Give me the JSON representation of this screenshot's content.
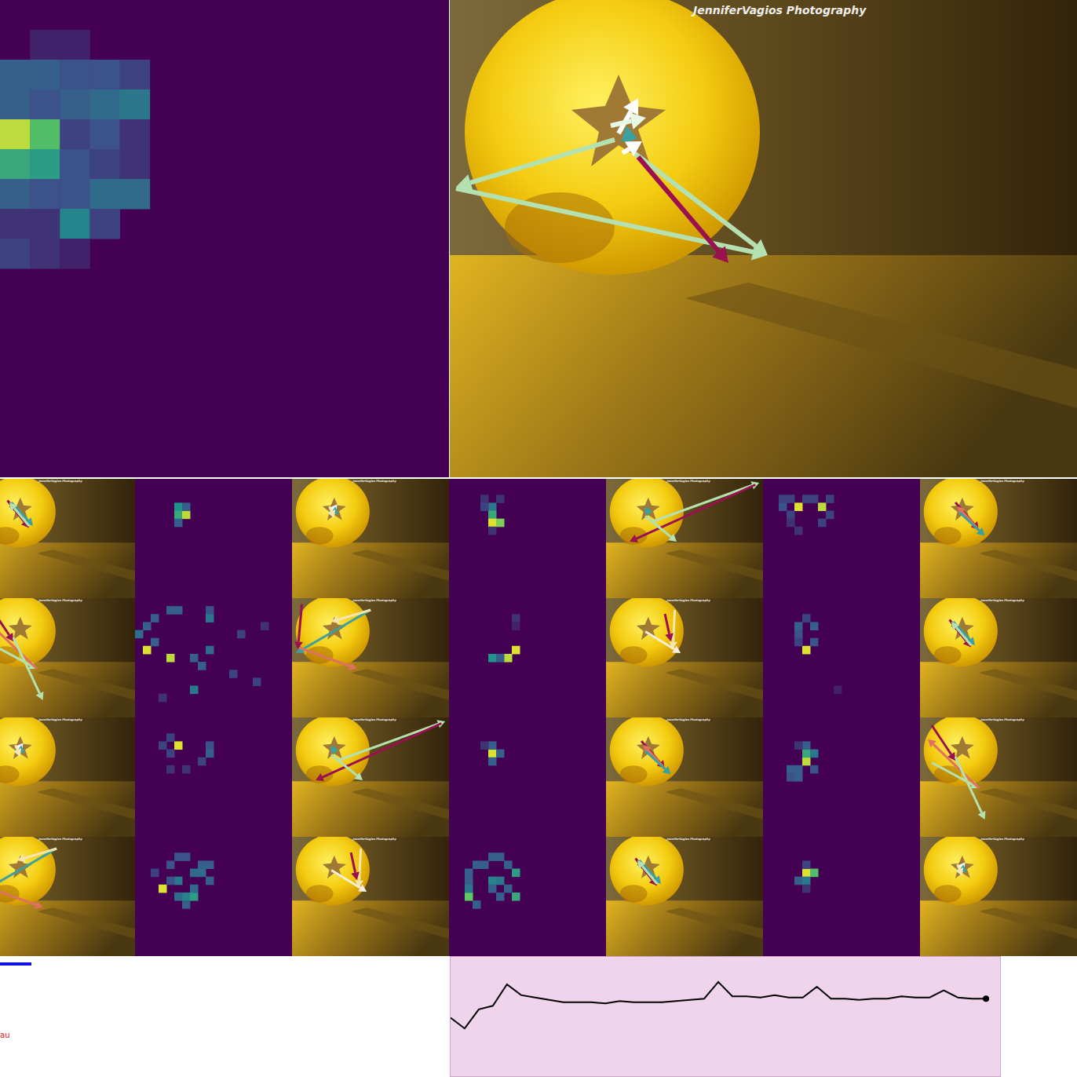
{
  "watermark": "JenniferVagios Photography",
  "legend_label": "au",
  "heatmaps": {
    "color_range": [
      0,
      1
    ],
    "main": {
      "shape": [
        16,
        15
      ],
      "cells": [
        [
          1,
          1,
          0.1
        ],
        [
          1,
          2,
          0.1
        ],
        [
          2,
          0,
          0.3
        ],
        [
          2,
          1,
          0.3
        ],
        [
          2,
          2,
          0.25
        ],
        [
          2,
          3,
          0.25
        ],
        [
          2,
          4,
          0.2
        ],
        [
          3,
          0,
          0.3
        ],
        [
          3,
          1,
          0.25
        ],
        [
          3,
          2,
          0.3
        ],
        [
          3,
          3,
          0.35
        ],
        [
          3,
          4,
          0.4
        ],
        [
          4,
          0,
          0.9
        ],
        [
          4,
          1,
          0.7
        ],
        [
          4,
          2,
          0.2
        ],
        [
          4,
          3,
          0.25
        ],
        [
          4,
          4,
          0.15
        ],
        [
          5,
          0,
          0.6
        ],
        [
          5,
          1,
          0.55
        ],
        [
          5,
          2,
          0.25
        ],
        [
          5,
          3,
          0.2
        ],
        [
          5,
          4,
          0.15
        ],
        [
          6,
          0,
          0.3
        ],
        [
          6,
          1,
          0.25
        ],
        [
          6,
          2,
          0.25
        ],
        [
          6,
          3,
          0.35
        ],
        [
          6,
          4,
          0.35
        ],
        [
          7,
          0,
          0.15
        ],
        [
          7,
          1,
          0.15
        ],
        [
          7,
          2,
          0.45
        ],
        [
          7,
          3,
          0.2
        ],
        [
          8,
          0,
          0.2
        ],
        [
          8,
          1,
          0.15
        ],
        [
          8,
          2,
          0.1
        ]
      ]
    },
    "small": [
      {
        "shape": [
          15,
          20
        ],
        "cells": [
          [
            3,
            5,
            0.5
          ],
          [
            4,
            5,
            0.6
          ],
          [
            4,
            6,
            0.9
          ],
          [
            5,
            5,
            0.3
          ],
          [
            3,
            6,
            0.3
          ]
        ]
      },
      {
        "shape": [
          15,
          20
        ],
        "cells": [
          [
            3,
            5,
            0.4
          ],
          [
            4,
            5,
            0.6
          ],
          [
            5,
            5,
            0.95
          ],
          [
            5,
            6,
            0.8
          ],
          [
            2,
            4,
            0.15
          ],
          [
            3,
            4,
            0.2
          ],
          [
            6,
            5,
            0.15
          ],
          [
            2,
            6,
            0.15
          ]
        ]
      },
      {
        "shape": [
          15,
          20
        ],
        "cells": [
          [
            3,
            4,
            0.95
          ],
          [
            3,
            7,
            0.9
          ],
          [
            2,
            2,
            0.2
          ],
          [
            2,
            3,
            0.2
          ],
          [
            2,
            5,
            0.2
          ],
          [
            2,
            6,
            0.2
          ],
          [
            3,
            2,
            0.25
          ],
          [
            4,
            3,
            0.2
          ],
          [
            4,
            8,
            0.2
          ],
          [
            5,
            3,
            0.15
          ],
          [
            6,
            4,
            0.15
          ],
          [
            5,
            7,
            0.2
          ],
          [
            2,
            8,
            0.2
          ]
        ]
      },
      {
        "shape": [
          15,
          20
        ],
        "cells": [
          [
            6,
            1,
            0.95
          ],
          [
            7,
            4,
            0.9
          ],
          [
            1,
            4,
            0.3
          ],
          [
            1,
            5,
            0.3
          ],
          [
            1,
            9,
            0.25
          ],
          [
            2,
            2,
            0.3
          ],
          [
            2,
            9,
            0.4
          ],
          [
            3,
            1,
            0.3
          ],
          [
            4,
            0,
            0.35
          ],
          [
            5,
            2,
            0.3
          ],
          [
            6,
            9,
            0.35
          ],
          [
            7,
            7,
            0.3
          ],
          [
            8,
            8,
            0.3
          ],
          [
            11,
            7,
            0.4
          ],
          [
            9,
            12,
            0.2
          ],
          [
            10,
            15,
            0.2
          ],
          [
            4,
            13,
            0.2
          ],
          [
            12,
            3,
            0.15
          ],
          [
            3,
            16,
            0.15
          ]
        ]
      },
      {
        "shape": [
          15,
          20
        ],
        "cells": [
          [
            6,
            8,
            0.95
          ],
          [
            7,
            7,
            0.9
          ],
          [
            7,
            5,
            0.5
          ],
          [
            7,
            6,
            0.3
          ],
          [
            2,
            8,
            0.15
          ],
          [
            3,
            8,
            0.1
          ]
        ]
      },
      {
        "shape": [
          15,
          20
        ],
        "cells": [
          [
            6,
            5,
            0.95
          ],
          [
            2,
            5,
            0.2
          ],
          [
            3,
            4,
            0.3
          ],
          [
            3,
            6,
            0.3
          ],
          [
            4,
            4,
            0.25
          ],
          [
            5,
            4,
            0.2
          ],
          [
            5,
            6,
            0.25
          ],
          [
            11,
            9,
            0.1
          ]
        ]
      },
      {
        "shape": [
          15,
          20
        ],
        "cells": [
          [
            3,
            5,
            0.95
          ],
          [
            2,
            4,
            0.2
          ],
          [
            3,
            3,
            0.2
          ],
          [
            4,
            4,
            0.2
          ],
          [
            3,
            9,
            0.25
          ],
          [
            4,
            9,
            0.3
          ],
          [
            5,
            8,
            0.2
          ],
          [
            6,
            6,
            0.15
          ],
          [
            6,
            4,
            0.15
          ]
        ]
      },
      {
        "shape": [
          15,
          20
        ],
        "cells": [
          [
            4,
            5,
            0.95
          ],
          [
            3,
            5,
            0.3
          ],
          [
            5,
            5,
            0.3
          ],
          [
            4,
            6,
            0.3
          ],
          [
            3,
            4,
            0.15
          ]
        ]
      },
      {
        "shape": [
          15,
          20
        ],
        "cells": [
          [
            5,
            5,
            0.9
          ],
          [
            4,
            5,
            0.6
          ],
          [
            4,
            6,
            0.4
          ],
          [
            3,
            5,
            0.3
          ],
          [
            6,
            4,
            0.3
          ],
          [
            6,
            3,
            0.3
          ],
          [
            7,
            3,
            0.25
          ],
          [
            7,
            4,
            0.3
          ],
          [
            3,
            4,
            0.15
          ],
          [
            6,
            6,
            0.25
          ]
        ]
      },
      {
        "shape": [
          15,
          20
        ],
        "cells": [
          [
            6,
            3,
            0.95
          ],
          [
            7,
            6,
            0.45
          ],
          [
            7,
            7,
            0.55
          ],
          [
            5,
            5,
            0.4
          ],
          [
            4,
            7,
            0.35
          ],
          [
            4,
            8,
            0.35
          ],
          [
            3,
            8,
            0.3
          ],
          [
            2,
            5,
            0.25
          ],
          [
            2,
            6,
            0.25
          ],
          [
            3,
            4,
            0.25
          ],
          [
            5,
            4,
            0.25
          ],
          [
            6,
            7,
            0.35
          ],
          [
            7,
            5,
            0.35
          ],
          [
            8,
            6,
            0.3
          ],
          [
            5,
            9,
            0.3
          ],
          [
            3,
            9,
            0.3
          ],
          [
            4,
            2,
            0.2
          ]
        ]
      },
      {
        "shape": [
          15,
          20
        ],
        "cells": [
          [
            7,
            2,
            0.75
          ],
          [
            7,
            8,
            0.6
          ],
          [
            4,
            8,
            0.55
          ],
          [
            5,
            5,
            0.45
          ],
          [
            5,
            6,
            0.4
          ],
          [
            6,
            2,
            0.4
          ],
          [
            6,
            5,
            0.3
          ],
          [
            3,
            3,
            0.3
          ],
          [
            3,
            4,
            0.3
          ],
          [
            2,
            5,
            0.3
          ],
          [
            2,
            6,
            0.3
          ],
          [
            3,
            7,
            0.3
          ],
          [
            4,
            2,
            0.3
          ],
          [
            5,
            2,
            0.3
          ],
          [
            6,
            7,
            0.3
          ],
          [
            7,
            6,
            0.3
          ],
          [
            8,
            3,
            0.3
          ]
        ]
      },
      {
        "shape": [
          15,
          20
        ],
        "cells": [
          [
            4,
            5,
            0.95
          ],
          [
            4,
            6,
            0.7
          ],
          [
            5,
            4,
            0.3
          ],
          [
            5,
            5,
            0.4
          ],
          [
            3,
            5,
            0.2
          ],
          [
            6,
            5,
            0.15
          ]
        ]
      }
    ]
  },
  "chart_data": {
    "type": "line",
    "x": [
      0,
      1,
      2,
      3,
      4,
      5,
      6,
      7,
      8,
      9,
      10,
      11,
      12,
      13,
      14,
      15,
      16,
      17,
      18,
      19,
      20,
      21,
      22,
      23,
      24,
      25,
      26,
      27,
      28,
      29,
      30,
      31,
      32,
      33,
      34,
      35,
      36,
      37,
      38
    ],
    "values": [
      0.49,
      0.4,
      0.56,
      0.59,
      0.77,
      0.68,
      0.66,
      0.64,
      0.62,
      0.62,
      0.62,
      0.61,
      0.63,
      0.62,
      0.62,
      0.62,
      0.63,
      0.64,
      0.65,
      0.79,
      0.67,
      0.67,
      0.66,
      0.68,
      0.66,
      0.66,
      0.75,
      0.65,
      0.65,
      0.64,
      0.65,
      0.65,
      0.67,
      0.66,
      0.66,
      0.72,
      0.66,
      0.65,
      0.65
    ],
    "xlim": [
      0,
      39
    ],
    "ylim": [
      0,
      1
    ],
    "tick_labels": false,
    "color": "#000000",
    "marker": "circle"
  }
}
